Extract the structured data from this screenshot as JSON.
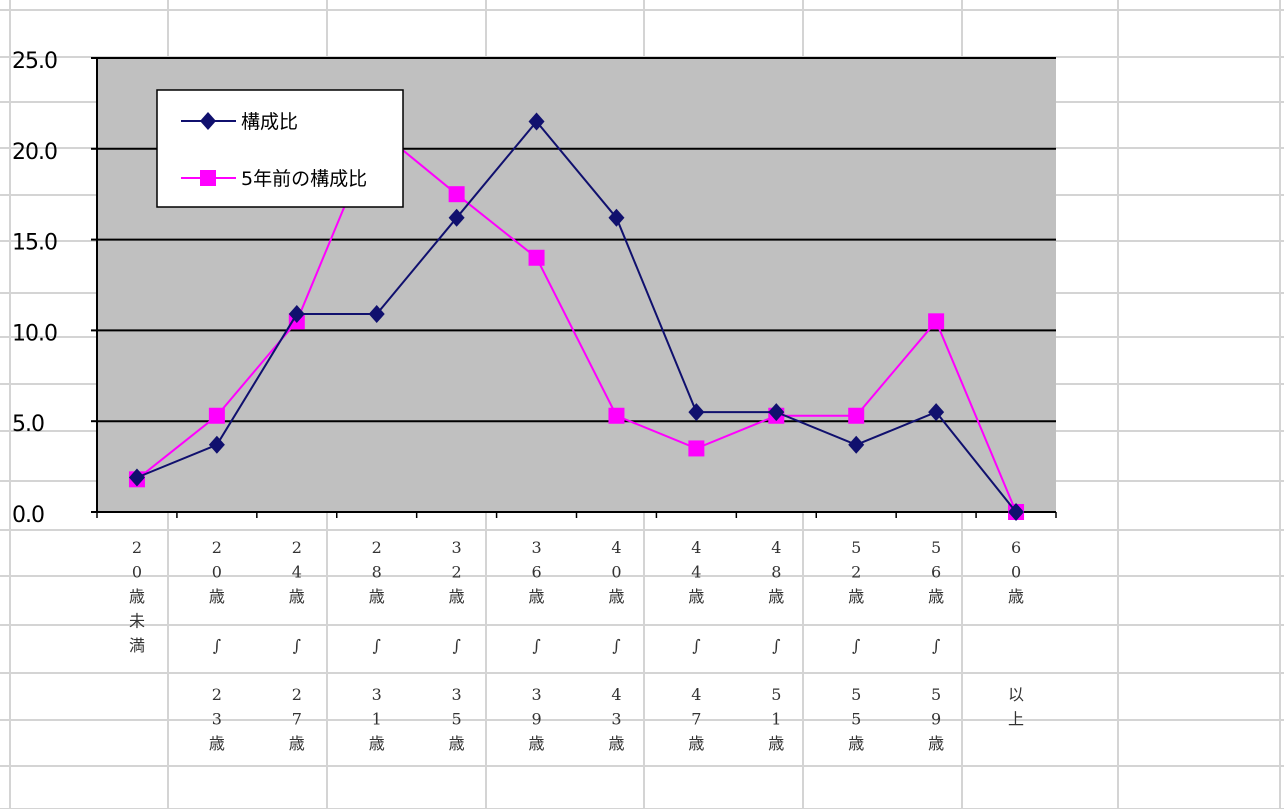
{
  "sheet": {
    "background": "#ffffff",
    "gridline_color": "#d4d4d4"
  },
  "chart_data": {
    "type": "line",
    "categories": [
      [
        "2",
        "0",
        "歳",
        "未",
        "満"
      ],
      [
        "2",
        "0",
        "歳",
        "",
        "∫",
        "",
        "2",
        "3",
        "歳"
      ],
      [
        "2",
        "4",
        "歳",
        "",
        "∫",
        "",
        "2",
        "7",
        "歳"
      ],
      [
        "2",
        "8",
        "歳",
        "",
        "∫",
        "",
        "3",
        "1",
        "歳"
      ],
      [
        "3",
        "2",
        "歳",
        "",
        "∫",
        "",
        "3",
        "5",
        "歳"
      ],
      [
        "3",
        "6",
        "歳",
        "",
        "∫",
        "",
        "3",
        "9",
        "歳"
      ],
      [
        "4",
        "0",
        "歳",
        "",
        "∫",
        "",
        "4",
        "3",
        "歳"
      ],
      [
        "4",
        "4",
        "歳",
        "",
        "∫",
        "",
        "4",
        "7",
        "歳"
      ],
      [
        "4",
        "8",
        "歳",
        "",
        "∫",
        "",
        "5",
        "1",
        "歳"
      ],
      [
        "5",
        "2",
        "歳",
        "",
        "∫",
        "",
        "5",
        "5",
        "歳"
      ],
      [
        "5",
        "6",
        "歳",
        "",
        "∫",
        "",
        "5",
        "9",
        "歳"
      ],
      [
        "6",
        "0",
        "歳",
        "",
        "",
        "",
        "以",
        "上"
      ]
    ],
    "series": [
      {
        "name": "構成比",
        "color": "#10106e",
        "marker": "diamond",
        "values": [
          1.9,
          3.7,
          10.9,
          10.9,
          16.2,
          21.5,
          16.2,
          5.5,
          5.5,
          3.7,
          5.5,
          0.0
        ]
      },
      {
        "name": "5年前の構成比",
        "color": "#ff00ff",
        "marker": "square",
        "values": [
          1.8,
          5.3,
          10.5,
          21.1,
          17.5,
          14.0,
          5.3,
          3.5,
          5.3,
          5.3,
          10.5,
          0.0
        ]
      }
    ],
    "y_ticks": [
      "0.0",
      "5.0",
      "10.0",
      "15.0",
      "20.0",
      "25.0"
    ],
    "ylim": [
      0,
      25
    ],
    "plot_background": "#c0c0c0",
    "grid": true,
    "legend_position": "top-left inside",
    "title": "",
    "xlabel": "",
    "ylabel": ""
  }
}
